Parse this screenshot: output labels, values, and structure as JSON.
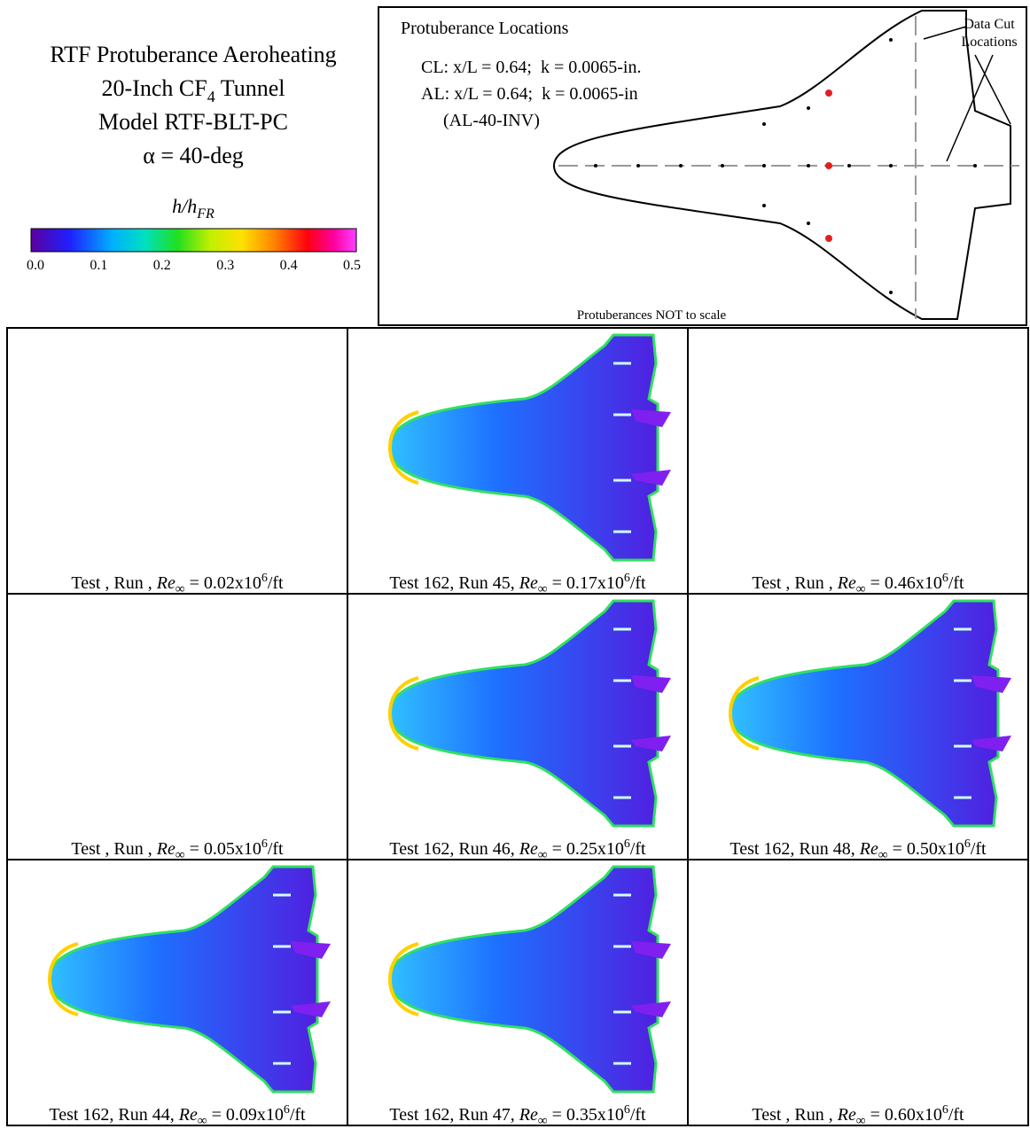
{
  "header": {
    "lines": [
      {
        "text": "RTF Protuberance Aeroheating"
      },
      {
        "text": "20-Inch CF",
        "sub": "4",
        "after": " Tunnel"
      },
      {
        "text": "Model RTF-BLT-PC"
      },
      {
        "text": "α = 40-deg"
      }
    ]
  },
  "colorbar": {
    "label": "h/h",
    "label_sub": "FR",
    "ticks": [
      "0.0",
      "0.1",
      "0.2",
      "0.3",
      "0.4",
      "0.5"
    ]
  },
  "locations": {
    "title": "Protuberance Locations",
    "lines": [
      "CL: x/L = 0.64;  k = 0.0065-in.",
      "AL: x/L = 0.64;  k = 0.0065-in",
      "(AL-40-INV)"
    ],
    "cut_label": [
      "Data Cut",
      "Locations"
    ],
    "note": "Protuberances NOT to scale"
  },
  "panels": [
    {
      "prefix": "Test , Run , ",
      "var": "Re",
      "sub": "∞",
      "rest": " = 0.02x10",
      "exp": "6",
      "unit": "/ft"
    },
    {
      "prefix": "Test 162, Run 45, ",
      "var": "Re",
      "sub": "∞",
      "rest": " = 0.17x10",
      "exp": "6",
      "unit": "/ft"
    },
    {
      "prefix": "Test , Run , ",
      "var": "Re",
      "sub": "∞",
      "rest": " = 0.46x10",
      "exp": "6",
      "unit": "/ft"
    },
    {
      "prefix": "Test , Run , ",
      "var": "Re",
      "sub": "∞",
      "rest": " = 0.05x10",
      "exp": "6",
      "unit": "/ft"
    },
    {
      "prefix": "Test 162, Run 46, ",
      "var": "Re",
      "sub": "∞",
      "rest": " = 0.25x10",
      "exp": "6",
      "unit": "/ft"
    },
    {
      "prefix": "Test 162, Run 48, ",
      "var": "Re",
      "sub": "∞",
      "rest": " = 0.50x10",
      "exp": "6",
      "unit": "/ft"
    },
    {
      "prefix": "Test 162, Run 44, ",
      "var": "Re",
      "sub": "∞",
      "rest": " = 0.09x10",
      "exp": "6",
      "unit": "/ft"
    },
    {
      "prefix": "Test 162, Run 47, ",
      "var": "Re",
      "sub": "∞",
      "rest": " = 0.35x10",
      "exp": "6",
      "unit": "/ft"
    },
    {
      "prefix": "Test , Run , ",
      "var": "Re",
      "sub": "∞",
      "rest": " = 0.60x10",
      "exp": "6",
      "unit": "/ft"
    }
  ]
}
